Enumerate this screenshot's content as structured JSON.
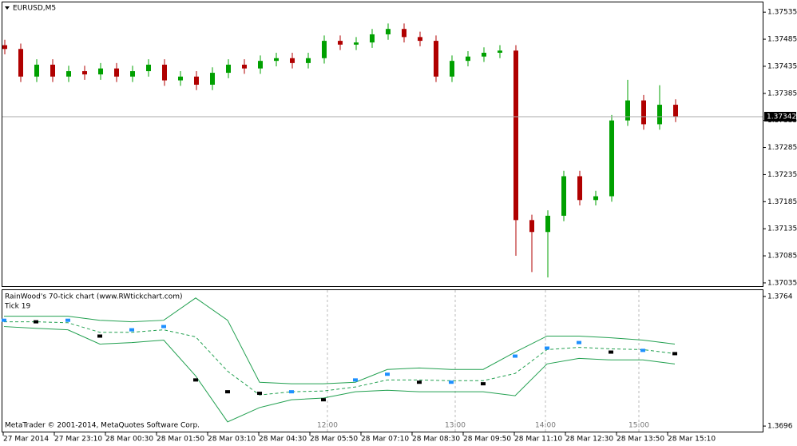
{
  "window": {
    "title": "EURUSD,M5",
    "footer": "MetaTrader © 2001-2014, MetaQuotes Software Corp.",
    "time_labels": [
      "27 Mar 2014",
      "27 Mar 23:10",
      "28 Mar 00:30",
      "28 Mar 01:50",
      "28 Mar 03:10",
      "28 Mar 04:30",
      "28 Mar 05:50",
      "28 Mar 07:10",
      "28 Mar 08:30",
      "28 Mar 09:50",
      "28 Mar 11:10",
      "28 Mar 12:30",
      "28 Mar 13:50",
      "28 Mar 15:10"
    ]
  },
  "chart_data": [
    {
      "type": "candlestick",
      "up_color": "#00a000",
      "down_color": "#b00000",
      "current_price": 1.37342,
      "ylim": [
        1.37029,
        1.37553
      ],
      "yticks": [
        1.37535,
        1.37485,
        1.37435,
        1.37385,
        1.37335,
        1.37285,
        1.37235,
        1.37185,
        1.37135,
        1.37085,
        1.37035
      ],
      "open": [
        1.37474,
        1.37467,
        1.37416,
        1.37438,
        1.37416,
        1.37426,
        1.3742,
        1.37431,
        1.37416,
        1.37426,
        1.37438,
        1.37409,
        1.37416,
        1.37401,
        1.37423,
        1.37438,
        1.37431,
        1.37445,
        1.3745,
        1.37441,
        1.3745,
        1.37482,
        1.37475,
        1.37479,
        1.37494,
        1.37504,
        1.37489,
        1.37482,
        1.37416,
        1.37445,
        1.37453,
        1.3746,
        1.37464,
        1.37151,
        1.37129,
        1.37159,
        1.37232,
        1.37188,
        1.37195,
        1.37335,
        1.37372,
        1.37328,
        1.37364
      ],
      "high": [
        1.37484,
        1.37477,
        1.37448,
        1.37448,
        1.37436,
        1.37436,
        1.37441,
        1.37441,
        1.37436,
        1.37448,
        1.37448,
        1.37426,
        1.37426,
        1.37433,
        1.37448,
        1.37448,
        1.37455,
        1.3746,
        1.3746,
        1.3746,
        1.37492,
        1.37492,
        1.37489,
        1.37504,
        1.37514,
        1.37514,
        1.37499,
        1.37492,
        1.37455,
        1.37463,
        1.3747,
        1.37474,
        1.37474,
        1.37161,
        1.37169,
        1.37242,
        1.37242,
        1.37205,
        1.37345,
        1.3741,
        1.37382,
        1.374,
        1.37374
      ],
      "low": [
        1.37457,
        1.37406,
        1.37406,
        1.37406,
        1.37406,
        1.3741,
        1.3741,
        1.37406,
        1.37406,
        1.37416,
        1.37399,
        1.37399,
        1.37391,
        1.37391,
        1.37413,
        1.37421,
        1.37421,
        1.37435,
        1.37431,
        1.37431,
        1.3744,
        1.37465,
        1.37465,
        1.37469,
        1.37484,
        1.37479,
        1.37472,
        1.37406,
        1.37406,
        1.37435,
        1.37443,
        1.3745,
        1.37085,
        1.37055,
        1.37045,
        1.37149,
        1.37178,
        1.37178,
        1.37185,
        1.37325,
        1.37318,
        1.37318,
        1.37332
      ],
      "close": [
        1.37467,
        1.37416,
        1.37438,
        1.37416,
        1.37426,
        1.3742,
        1.37431,
        1.37416,
        1.37426,
        1.37438,
        1.37409,
        1.37416,
        1.37401,
        1.37423,
        1.37438,
        1.37431,
        1.37445,
        1.3745,
        1.37441,
        1.3745,
        1.37482,
        1.37475,
        1.37479,
        1.37494,
        1.37504,
        1.37489,
        1.37482,
        1.37416,
        1.37445,
        1.37453,
        1.3746,
        1.37464,
        1.37151,
        1.37129,
        1.37159,
        1.37232,
        1.37188,
        1.37195,
        1.37335,
        1.37372,
        1.37328,
        1.37364,
        1.37342
      ]
    },
    {
      "type": "line",
      "title": "RainWood's 70-tick chart (www.RWtickchart.com)",
      "subtitle": "Tick 19",
      "ylim": [
        1.36931,
        1.37673
      ],
      "yticks": [
        1.3764,
        1.3696
      ],
      "time_labels": [
        "12:00",
        "13:00",
        "14:00",
        "15:00"
      ],
      "series": [
        {
          "color": "#22a050",
          "values": [
            1.37536,
            1.37536,
            1.37536,
            1.37515,
            1.37507,
            1.37515,
            1.37632,
            1.37515,
            1.3719,
            1.37182,
            1.37182,
            1.3719,
            1.37257,
            1.37265,
            1.37257,
            1.37257,
            1.37348,
            1.37432,
            1.37432,
            1.37423,
            1.37411,
            1.3739
          ]
        },
        {
          "color": "#22a050",
          "dash": true,
          "values": [
            1.37507,
            1.37507,
            1.37502,
            1.37452,
            1.37452,
            1.37465,
            1.37428,
            1.37248,
            1.37123,
            1.3714,
            1.37144,
            1.37165,
            1.37202,
            1.37202,
            1.37198,
            1.37198,
            1.37236,
            1.37361,
            1.37373,
            1.37365,
            1.37361,
            1.3734
          ]
        },
        {
          "color": "#22a050",
          "values": [
            1.37482,
            1.37473,
            1.37465,
            1.3739,
            1.37398,
            1.37411,
            1.37223,
            1.36982,
            1.37057,
            1.37098,
            1.37107,
            1.3714,
            1.37148,
            1.3714,
            1.3714,
            1.3714,
            1.37119,
            1.37286,
            1.37315,
            1.37307,
            1.37307,
            1.37286
          ]
        },
        {
          "color": "#1e90ff",
          "marker": true,
          "values": [
            1.37515,
            1.37507,
            1.37515,
            1.37432,
            1.37465,
            1.37482,
            1.37202,
            1.3714,
            1.37132,
            1.3714,
            1.37098,
            1.37202,
            1.37232,
            1.3719,
            1.3719,
            1.37182,
            1.37327,
            1.37369,
            1.37398,
            1.37348,
            1.37357,
            1.3734
          ]
        }
      ]
    }
  ]
}
